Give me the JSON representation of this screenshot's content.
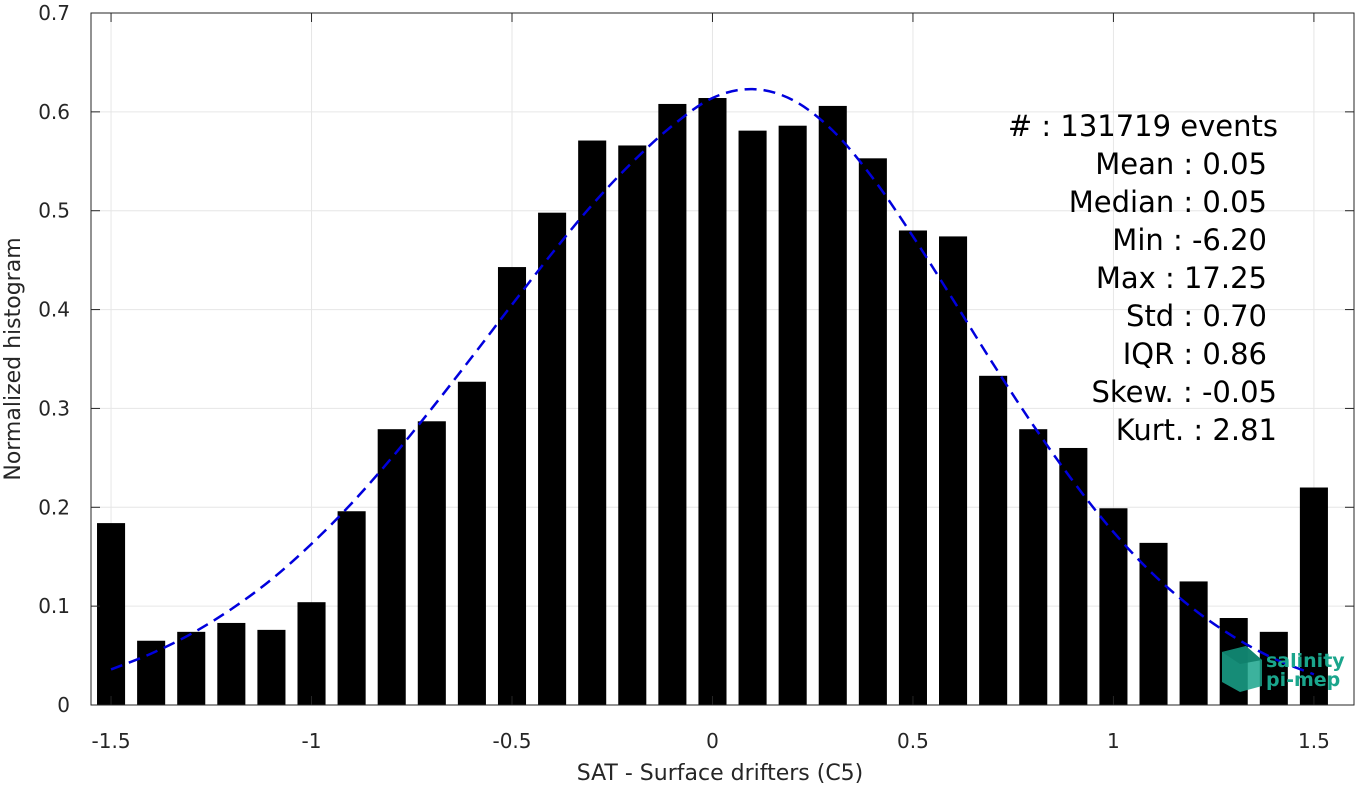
{
  "chart_data": {
    "type": "bar",
    "xlabel": "SAT - Surface drifters (C5)",
    "ylabel": "Normalized histogram",
    "xlim": [
      -1.55,
      1.6
    ],
    "ylim": [
      0,
      0.7
    ],
    "xticks": [
      -1.5,
      -1,
      -0.5,
      0,
      0.5,
      1,
      1.5
    ],
    "xtick_labels": [
      "-1.5",
      "-1",
      "-0.5",
      "0",
      "0.5",
      "1",
      "1.5"
    ],
    "yticks": [
      0,
      0.1,
      0.2,
      0.3,
      0.4,
      0.5,
      0.6,
      0.7
    ],
    "ytick_labels": [
      "0",
      "0.1",
      "0.2",
      "0.3",
      "0.4",
      "0.5",
      "0.6",
      "0.7"
    ],
    "grid": true,
    "bar_color": "#000000",
    "bins": [
      {
        "x": -1.5,
        "value": 0.184
      },
      {
        "x": -1.4,
        "value": 0.065
      },
      {
        "x": -1.3,
        "value": 0.074
      },
      {
        "x": -1.2,
        "value": 0.083
      },
      {
        "x": -1.1,
        "value": 0.076
      },
      {
        "x": -1.0,
        "value": 0.104
      },
      {
        "x": -0.9,
        "value": 0.196
      },
      {
        "x": -0.8,
        "value": 0.279
      },
      {
        "x": -0.7,
        "value": 0.287
      },
      {
        "x": -0.6,
        "value": 0.327
      },
      {
        "x": -0.5,
        "value": 0.443
      },
      {
        "x": -0.4,
        "value": 0.498
      },
      {
        "x": -0.3,
        "value": 0.571
      },
      {
        "x": -0.2,
        "value": 0.566
      },
      {
        "x": -0.1,
        "value": 0.608
      },
      {
        "x": 0.0,
        "value": 0.614
      },
      {
        "x": 0.1,
        "value": 0.581
      },
      {
        "x": 0.2,
        "value": 0.586
      },
      {
        "x": 0.3,
        "value": 0.606
      },
      {
        "x": 0.4,
        "value": 0.553
      },
      {
        "x": 0.5,
        "value": 0.48
      },
      {
        "x": 0.6,
        "value": 0.474
      },
      {
        "x": 0.7,
        "value": 0.333
      },
      {
        "x": 0.8,
        "value": 0.279
      },
      {
        "x": 0.9,
        "value": 0.26
      },
      {
        "x": 1.0,
        "value": 0.199
      },
      {
        "x": 1.1,
        "value": 0.164
      },
      {
        "x": 1.2,
        "value": 0.125
      },
      {
        "x": 1.3,
        "value": 0.088
      },
      {
        "x": 1.4,
        "value": 0.074
      },
      {
        "x": 1.5,
        "value": 0.22
      }
    ],
    "fit_curve": {
      "style": "dashed",
      "color": "#0000dd",
      "x": [
        -1.5,
        -1.4,
        -1.3,
        -1.2,
        -1.1,
        -1.0,
        -0.9,
        -0.8,
        -0.7,
        -0.6,
        -0.5,
        -0.4,
        -0.3,
        -0.2,
        -0.1,
        0.0,
        0.1,
        0.2,
        0.3,
        0.4,
        0.5,
        0.6,
        0.7,
        0.8,
        0.9,
        1.0,
        1.1,
        1.2,
        1.3,
        1.4,
        1.5
      ],
      "y": [
        0.036,
        0.052,
        0.072,
        0.097,
        0.127,
        0.163,
        0.204,
        0.25,
        0.3,
        0.352,
        0.405,
        0.457,
        0.506,
        0.549,
        0.586,
        0.614,
        0.623,
        0.612,
        0.581,
        0.533,
        0.474,
        0.41,
        0.345,
        0.283,
        0.226,
        0.175,
        0.132,
        0.097,
        0.069,
        0.047,
        0.031
      ]
    }
  },
  "stats": {
    "lines": [
      "#  : 131719 events",
      "Mean : 0.05",
      "Median : 0.05",
      "Min : -6.20",
      "Max : 17.25",
      "Std : 0.70",
      "IQR : 0.86",
      "Skew. : -0.05",
      "Kurt. : 2.81"
    ]
  },
  "logo": {
    "line1": "salinity",
    "line2": "pi-mep",
    "color": "#1aa58c"
  }
}
